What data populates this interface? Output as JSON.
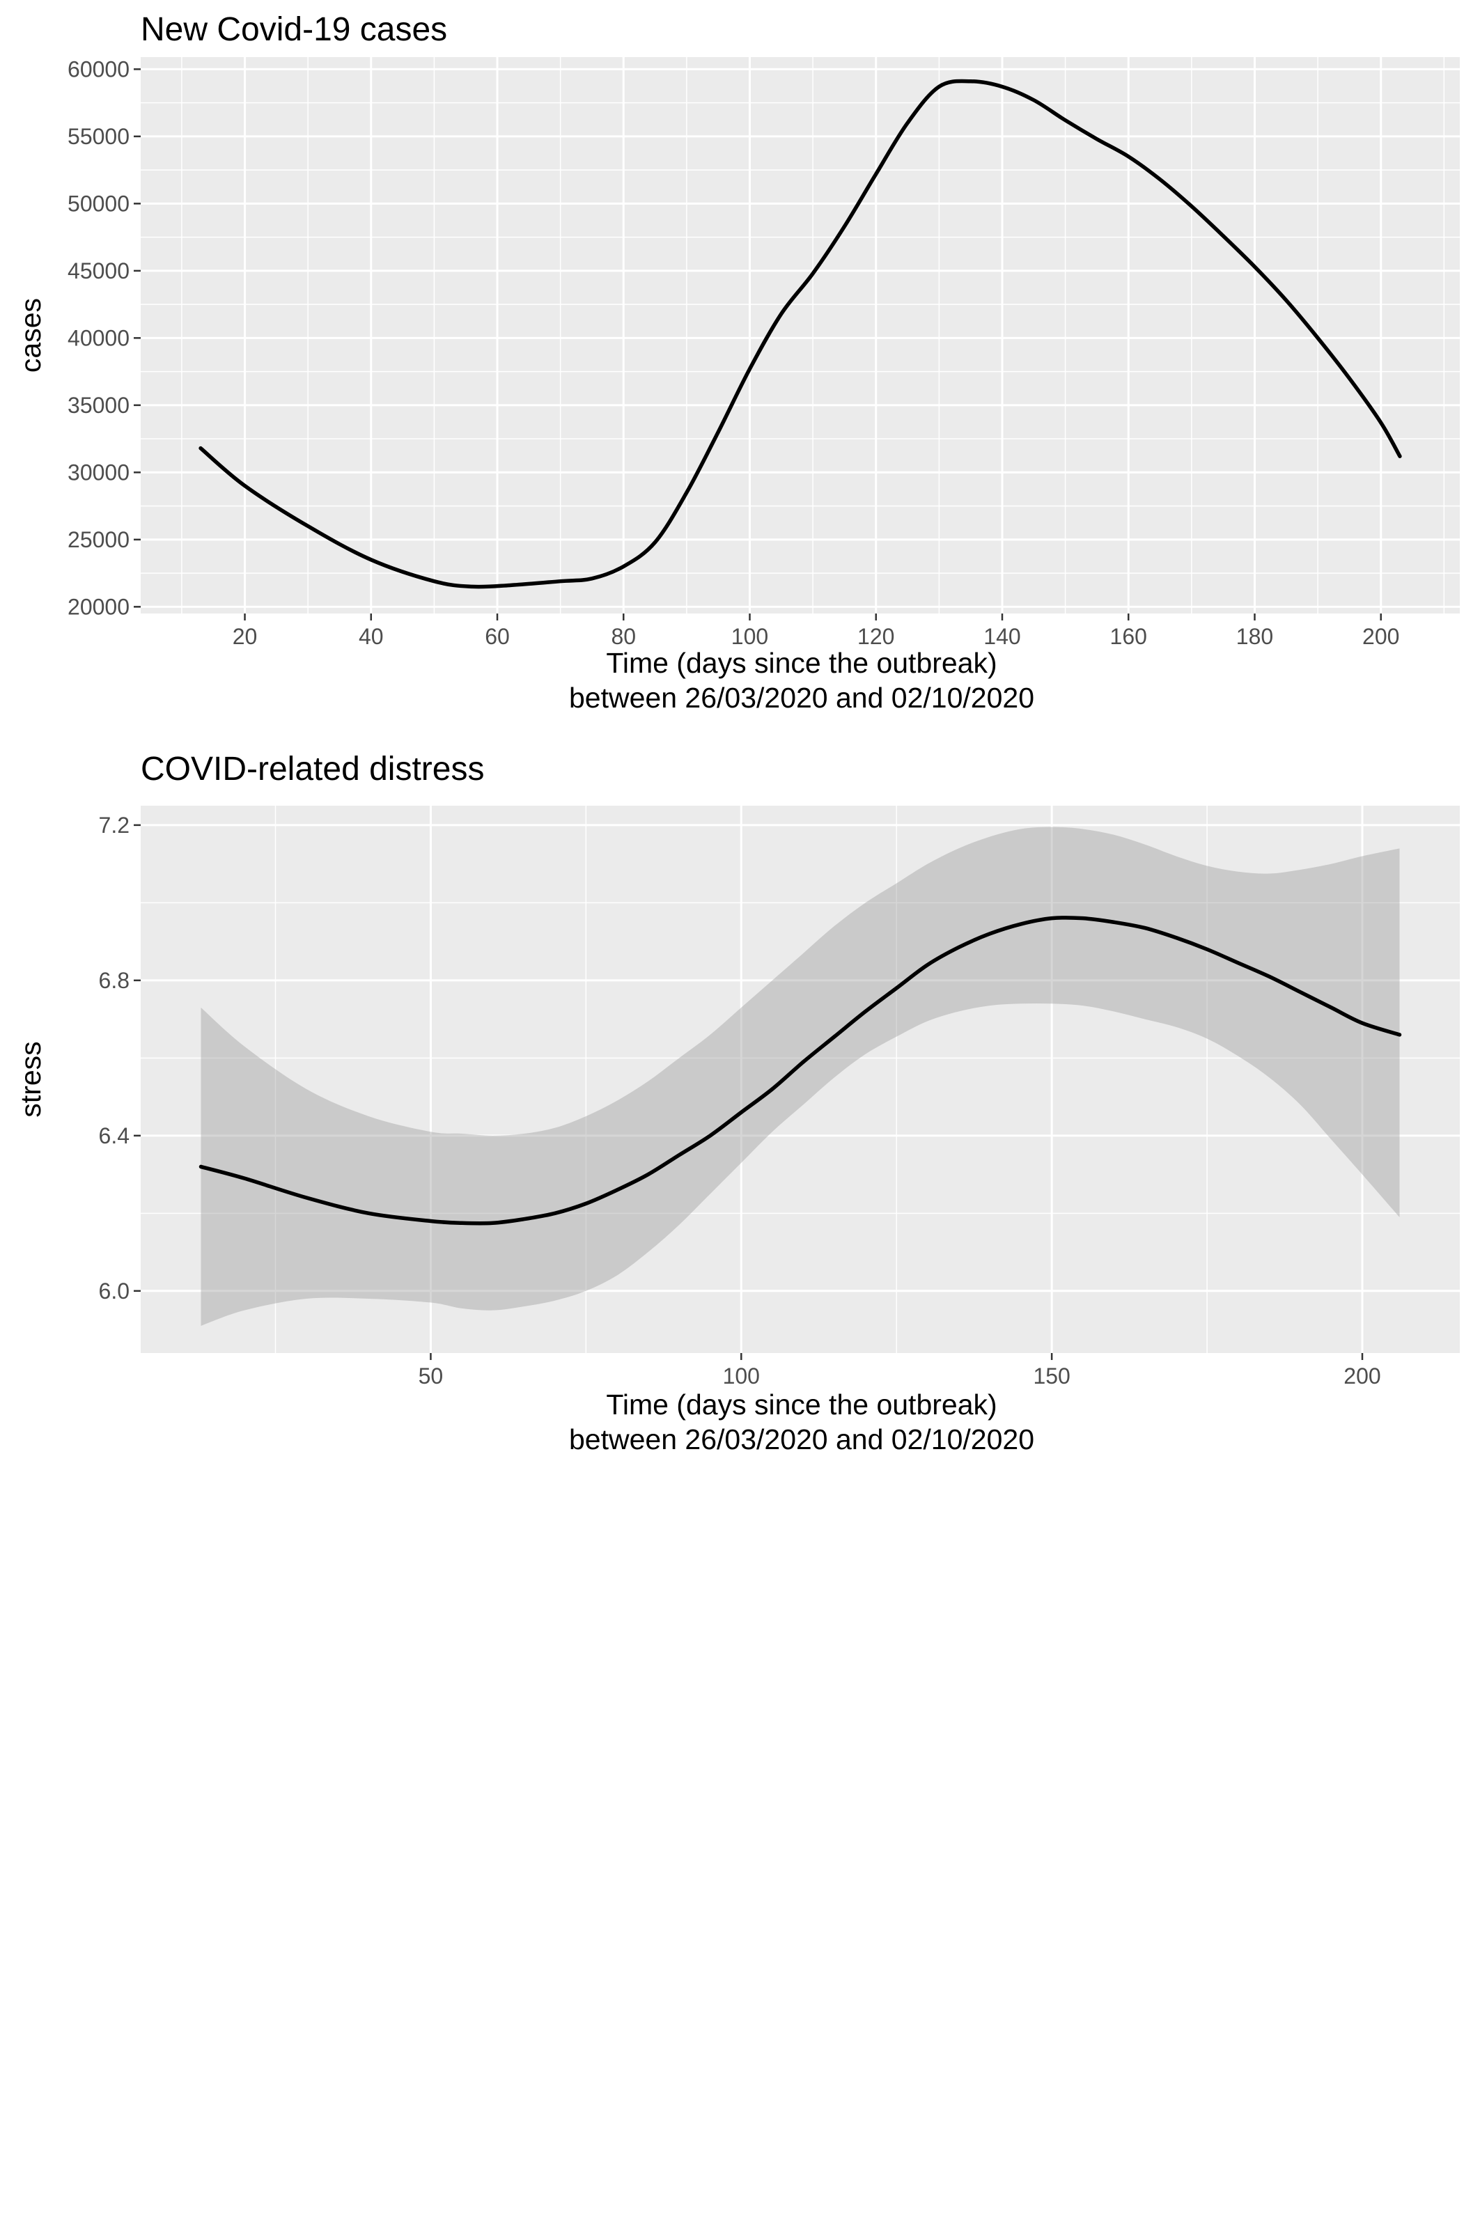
{
  "chart_data": [
    {
      "type": "line",
      "title": "New Covid-19 cases",
      "xlabel": "Time (days since the outbreak)",
      "xlabel_sub": "between 26/03/2020 and 02/10/2020",
      "ylabel": "cases",
      "xlim": [
        3.5,
        212.5
      ],
      "ylim": [
        19500,
        60900
      ],
      "x_ticks": [
        20,
        40,
        60,
        80,
        100,
        120,
        140,
        160,
        180,
        200
      ],
      "y_ticks": [
        20000,
        25000,
        30000,
        35000,
        40000,
        45000,
        50000,
        55000,
        60000
      ],
      "grid": true,
      "series": [
        {
          "color": "#000000",
          "x": [
            13,
            20,
            30,
            40,
            50,
            56,
            62,
            70,
            75,
            80,
            85,
            90,
            95,
            100,
            105,
            110,
            115,
            120,
            125,
            130,
            135,
            140,
            145,
            150,
            155,
            160,
            165,
            170,
            175,
            180,
            185,
            190,
            195,
            200,
            203
          ],
          "y": [
            31800,
            29000,
            26000,
            23500,
            21900,
            21500,
            21600,
            21900,
            22100,
            23000,
            24800,
            28500,
            33000,
            37700,
            41800,
            44800,
            48300,
            52200,
            56000,
            58700,
            59100,
            58700,
            57700,
            56200,
            54800,
            53500,
            51800,
            49800,
            47600,
            45300,
            42800,
            40000,
            37000,
            33700,
            31200
          ]
        }
      ]
    },
    {
      "type": "line",
      "title": "COVID-related distress",
      "xlabel": "Time (days since the outbreak)",
      "xlabel_sub": "between 26/03/2020 and 02/10/2020",
      "ylabel": "stress",
      "xlim": [
        3.3,
        215.7
      ],
      "ylim": [
        5.84,
        7.25
      ],
      "x_ticks": [
        50,
        100,
        150,
        200
      ],
      "y_ticks": [
        6.0,
        6.4,
        6.8,
        7.2
      ],
      "grid": true,
      "series": [
        {
          "color": "#000000",
          "x": [
            13,
            20,
            30,
            40,
            50,
            55,
            60,
            65,
            70,
            75,
            80,
            85,
            90,
            95,
            100,
            105,
            110,
            115,
            120,
            125,
            130,
            135,
            140,
            145,
            150,
            155,
            160,
            165,
            170,
            175,
            180,
            185,
            190,
            195,
            200,
            206
          ],
          "y": [
            6.32,
            6.29,
            6.24,
            6.2,
            6.18,
            6.175,
            6.175,
            6.185,
            6.2,
            6.225,
            6.26,
            6.3,
            6.35,
            6.4,
            6.46,
            6.52,
            6.59,
            6.655,
            6.72,
            6.78,
            6.84,
            6.885,
            6.92,
            6.945,
            6.96,
            6.96,
            6.95,
            6.935,
            6.91,
            6.88,
            6.845,
            6.81,
            6.77,
            6.73,
            6.69,
            6.66
          ],
          "ci_lower": [
            5.91,
            5.95,
            5.98,
            5.98,
            5.97,
            5.955,
            5.95,
            5.96,
            5.975,
            6.0,
            6.04,
            6.1,
            6.17,
            6.25,
            6.33,
            6.41,
            6.48,
            6.55,
            6.61,
            6.655,
            6.695,
            6.72,
            6.735,
            6.74,
            6.74,
            6.735,
            6.72,
            6.7,
            6.68,
            6.65,
            6.605,
            6.55,
            6.48,
            6.39,
            6.3,
            6.19
          ],
          "ci_upper": [
            6.73,
            6.63,
            6.52,
            6.45,
            6.41,
            6.405,
            6.4,
            6.405,
            6.42,
            6.45,
            6.49,
            6.54,
            6.6,
            6.66,
            6.73,
            6.8,
            6.87,
            6.94,
            7.0,
            7.05,
            7.1,
            7.14,
            7.17,
            7.19,
            7.195,
            7.19,
            7.175,
            7.15,
            7.12,
            7.095,
            7.08,
            7.075,
            7.085,
            7.1,
            7.12,
            7.14
          ]
        }
      ]
    }
  ]
}
